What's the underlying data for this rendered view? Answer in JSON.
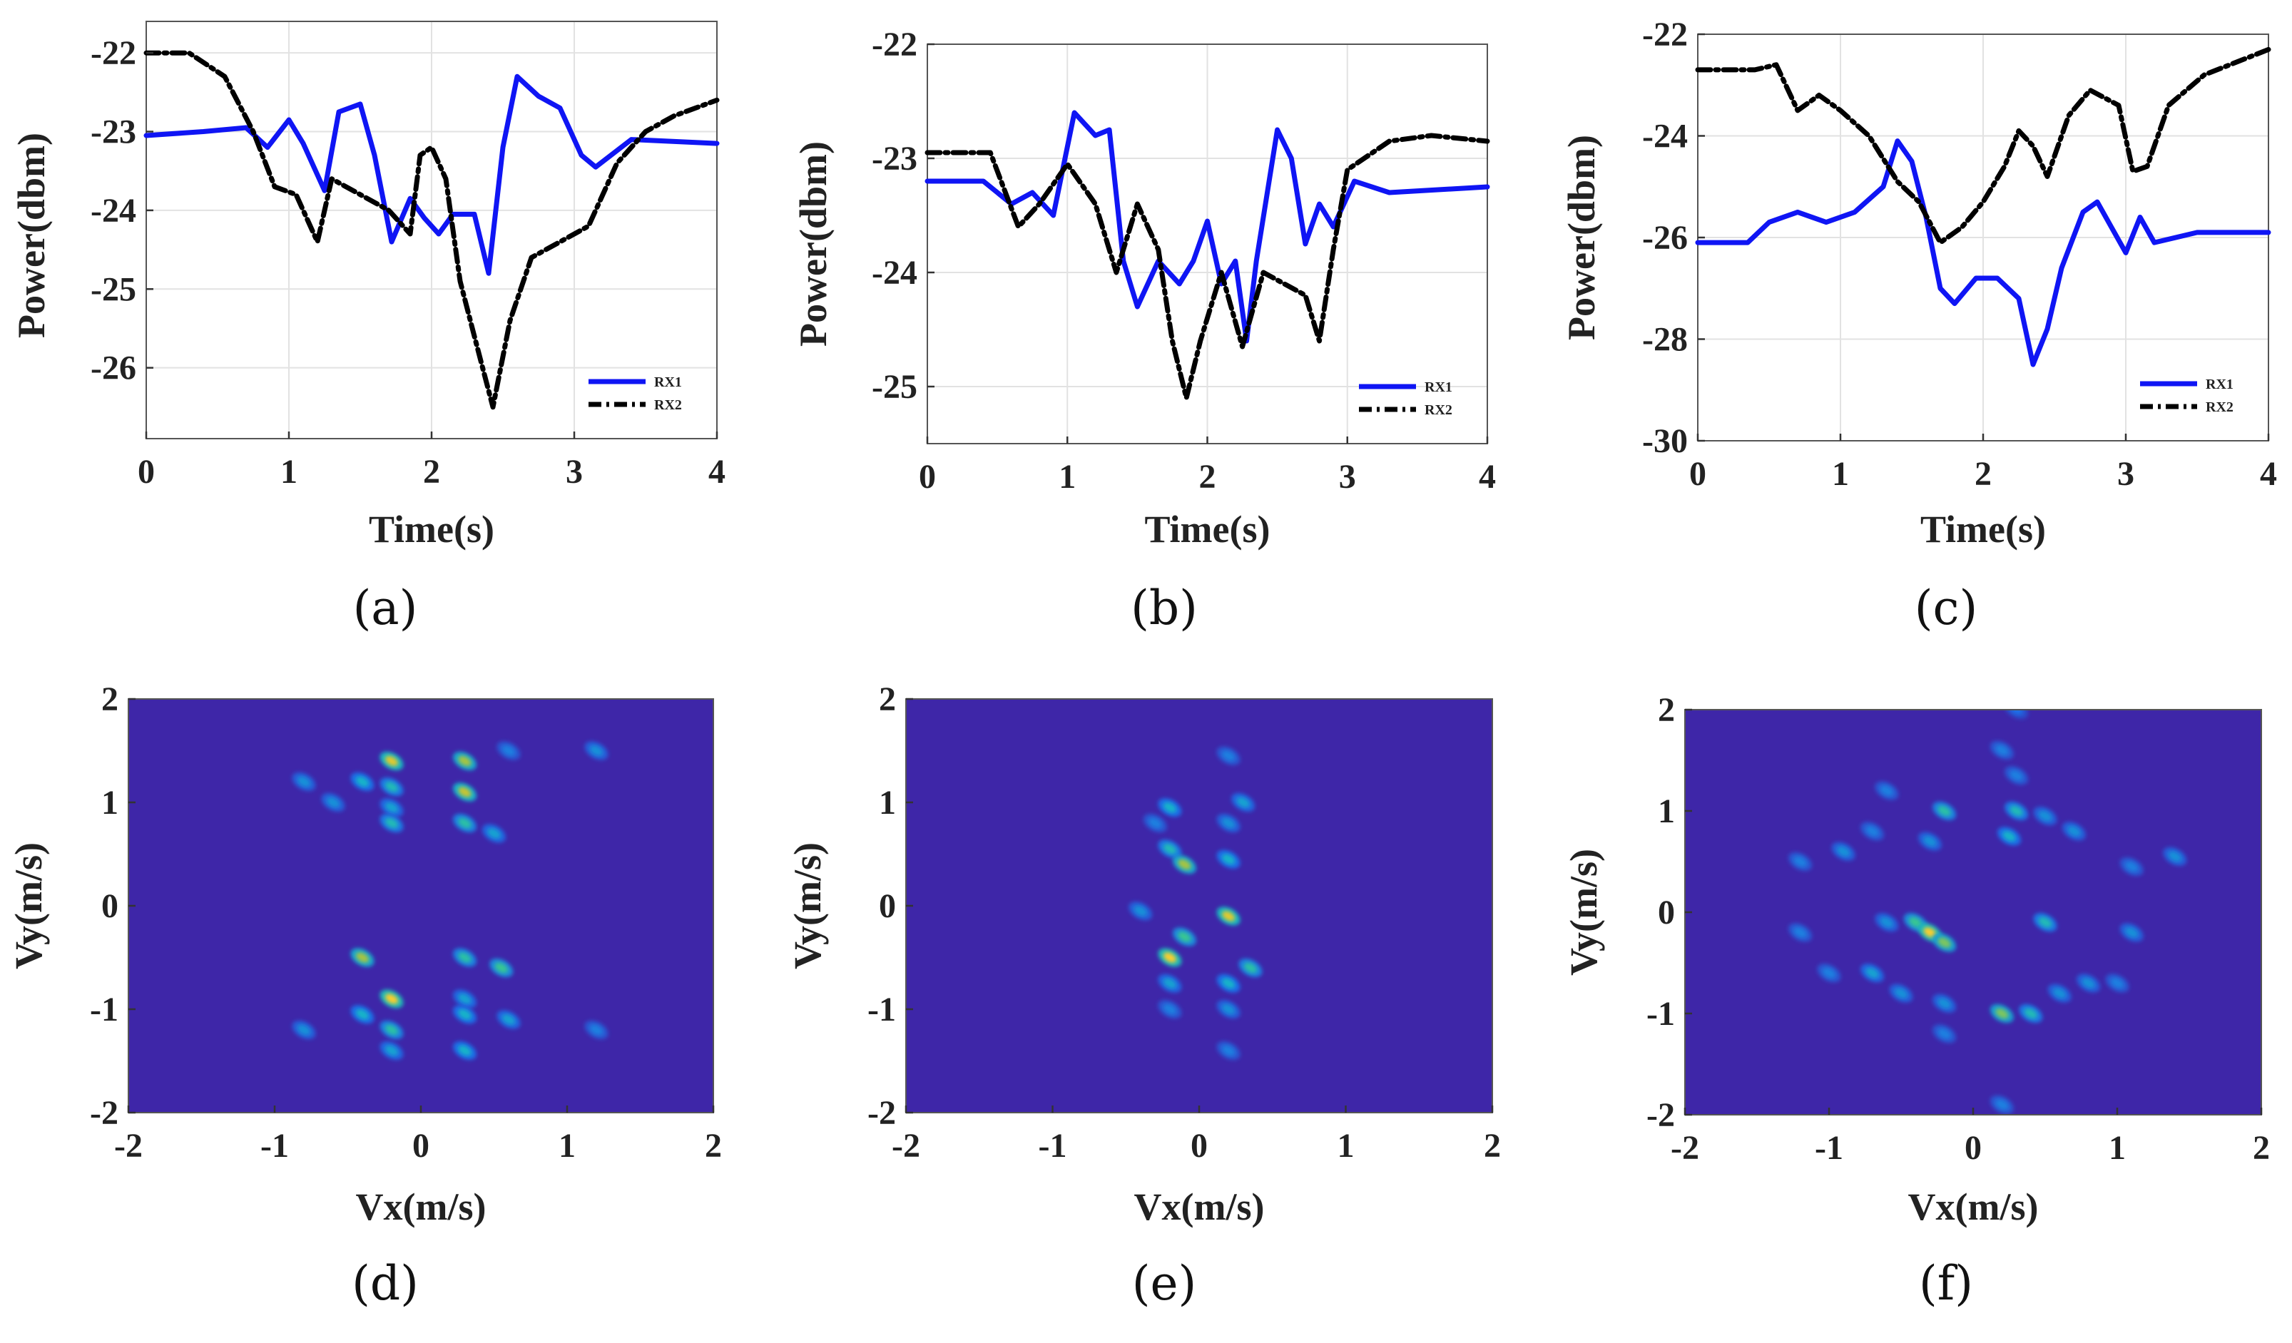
{
  "chart_data": [
    {
      "id": "a",
      "type": "line",
      "caption": "(a)",
      "xlabel": "Time(s)",
      "ylabel": "Power(dbm)",
      "xlim": [
        0,
        4
      ],
      "ylim": [
        -26.9,
        -21.6
      ],
      "xticks": [
        "0",
        "1",
        "2",
        "3",
        "4"
      ],
      "yticks": [
        "-22",
        "-23",
        "-24",
        "-25",
        "-26"
      ],
      "legend": [
        "RX1",
        "RX2"
      ],
      "series": [
        {
          "name": "RX1",
          "color": "#0f15f4",
          "dash": "solid",
          "points": [
            [
              0,
              -23.05
            ],
            [
              0.4,
              -23.0
            ],
            [
              0.7,
              -22.95
            ],
            [
              0.85,
              -23.2
            ],
            [
              1.0,
              -22.85
            ],
            [
              1.1,
              -23.15
            ],
            [
              1.25,
              -23.75
            ],
            [
              1.35,
              -22.75
            ],
            [
              1.5,
              -22.65
            ],
            [
              1.6,
              -23.3
            ],
            [
              1.72,
              -24.4
            ],
            [
              1.85,
              -23.85
            ],
            [
              1.95,
              -24.1
            ],
            [
              2.05,
              -24.3
            ],
            [
              2.15,
              -24.05
            ],
            [
              2.3,
              -24.05
            ],
            [
              2.4,
              -24.8
            ],
            [
              2.5,
              -23.2
            ],
            [
              2.6,
              -22.3
            ],
            [
              2.75,
              -22.55
            ],
            [
              2.9,
              -22.7
            ],
            [
              3.05,
              -23.3
            ],
            [
              3.15,
              -23.45
            ],
            [
              3.4,
              -23.1
            ],
            [
              4.0,
              -23.15
            ]
          ]
        },
        {
          "name": "RX2",
          "color": "#000000",
          "dash": "18,7,4,7",
          "points": [
            [
              0,
              -22.0
            ],
            [
              0.3,
              -22.0
            ],
            [
              0.55,
              -22.3
            ],
            [
              0.75,
              -23.0
            ],
            [
              0.9,
              -23.7
            ],
            [
              1.05,
              -23.8
            ],
            [
              1.2,
              -24.4
            ],
            [
              1.3,
              -23.6
            ],
            [
              1.5,
              -23.8
            ],
            [
              1.7,
              -24.0
            ],
            [
              1.85,
              -24.3
            ],
            [
              1.92,
              -23.3
            ],
            [
              2.0,
              -23.2
            ],
            [
              2.1,
              -23.6
            ],
            [
              2.2,
              -24.9
            ],
            [
              2.3,
              -25.6
            ],
            [
              2.43,
              -26.5
            ],
            [
              2.55,
              -25.4
            ],
            [
              2.7,
              -24.6
            ],
            [
              2.9,
              -24.4
            ],
            [
              3.1,
              -24.2
            ],
            [
              3.3,
              -23.4
            ],
            [
              3.5,
              -23.0
            ],
            [
              3.7,
              -22.8
            ],
            [
              4.0,
              -22.6
            ]
          ]
        }
      ]
    },
    {
      "id": "b",
      "type": "line",
      "caption": "(b)",
      "xlabel": "Time(s)",
      "ylabel": "Power(dbm)",
      "xlim": [
        0,
        4
      ],
      "ylim": [
        -25.5,
        -22.0
      ],
      "xticks": [
        "0",
        "1",
        "2",
        "3",
        "4"
      ],
      "yticks": [
        "-22",
        "-23",
        "-24",
        "-25"
      ],
      "legend": [
        "RX1",
        "RX2"
      ],
      "series": [
        {
          "name": "RX1",
          "color": "#0f15f4",
          "dash": "solid",
          "points": [
            [
              0,
              -23.2
            ],
            [
              0.4,
              -23.2
            ],
            [
              0.6,
              -23.4
            ],
            [
              0.75,
              -23.3
            ],
            [
              0.9,
              -23.5
            ],
            [
              1.05,
              -22.6
            ],
            [
              1.2,
              -22.8
            ],
            [
              1.3,
              -22.75
            ],
            [
              1.4,
              -23.9
            ],
            [
              1.5,
              -24.3
            ],
            [
              1.65,
              -23.9
            ],
            [
              1.8,
              -24.1
            ],
            [
              1.9,
              -23.9
            ],
            [
              2.0,
              -23.55
            ],
            [
              2.1,
              -24.1
            ],
            [
              2.2,
              -23.9
            ],
            [
              2.28,
              -24.6
            ],
            [
              2.35,
              -23.9
            ],
            [
              2.5,
              -22.75
            ],
            [
              2.6,
              -23.0
            ],
            [
              2.7,
              -23.75
            ],
            [
              2.8,
              -23.4
            ],
            [
              2.9,
              -23.6
            ],
            [
              3.05,
              -23.2
            ],
            [
              3.3,
              -23.3
            ],
            [
              4.0,
              -23.25
            ]
          ]
        },
        {
          "name": "RX2",
          "color": "#000000",
          "dash": "18,7,4,7",
          "points": [
            [
              0,
              -22.95
            ],
            [
              0.45,
              -22.95
            ],
            [
              0.65,
              -23.6
            ],
            [
              0.8,
              -23.4
            ],
            [
              1.0,
              -23.05
            ],
            [
              1.2,
              -23.4
            ],
            [
              1.35,
              -24.0
            ],
            [
              1.5,
              -23.4
            ],
            [
              1.65,
              -23.8
            ],
            [
              1.75,
              -24.6
            ],
            [
              1.85,
              -25.1
            ],
            [
              1.95,
              -24.6
            ],
            [
              2.1,
              -24.0
            ],
            [
              2.25,
              -24.65
            ],
            [
              2.4,
              -24.0
            ],
            [
              2.55,
              -24.1
            ],
            [
              2.7,
              -24.2
            ],
            [
              2.8,
              -24.6
            ],
            [
              2.9,
              -23.8
            ],
            [
              3.0,
              -23.1
            ],
            [
              3.3,
              -22.85
            ],
            [
              3.6,
              -22.8
            ],
            [
              4.0,
              -22.85
            ]
          ]
        }
      ]
    },
    {
      "id": "c",
      "type": "line",
      "caption": "(c)",
      "xlabel": "Time(s)",
      "ylabel": "Power(dbm)",
      "xlim": [
        0,
        4
      ],
      "ylim": [
        -30,
        -22
      ],
      "xticks": [
        "0",
        "1",
        "2",
        "3",
        "4"
      ],
      "yticks": [
        "-22",
        "-24",
        "-26",
        "-28",
        "-30"
      ],
      "legend": [
        "RX1",
        "RX2"
      ],
      "series": [
        {
          "name": "RX1",
          "color": "#0f15f4",
          "dash": "solid",
          "points": [
            [
              0,
              -26.1
            ],
            [
              0.35,
              -26.1
            ],
            [
              0.5,
              -25.7
            ],
            [
              0.7,
              -25.5
            ],
            [
              0.9,
              -25.7
            ],
            [
              1.1,
              -25.5
            ],
            [
              1.3,
              -25.0
            ],
            [
              1.4,
              -24.1
            ],
            [
              1.5,
              -24.5
            ],
            [
              1.6,
              -25.6
            ],
            [
              1.7,
              -27.0
            ],
            [
              1.8,
              -27.3
            ],
            [
              1.95,
              -26.8
            ],
            [
              2.1,
              -26.8
            ],
            [
              2.25,
              -27.2
            ],
            [
              2.35,
              -28.5
            ],
            [
              2.45,
              -27.8
            ],
            [
              2.55,
              -26.6
            ],
            [
              2.7,
              -25.5
            ],
            [
              2.8,
              -25.3
            ],
            [
              2.9,
              -25.8
            ],
            [
              3.0,
              -26.3
            ],
            [
              3.1,
              -25.6
            ],
            [
              3.2,
              -26.1
            ],
            [
              3.5,
              -25.9
            ],
            [
              4.0,
              -25.9
            ]
          ]
        },
        {
          "name": "RX2",
          "color": "#000000",
          "dash": "18,7,4,7",
          "points": [
            [
              0,
              -22.7
            ],
            [
              0.4,
              -22.7
            ],
            [
              0.55,
              -22.6
            ],
            [
              0.7,
              -23.5
            ],
            [
              0.85,
              -23.2
            ],
            [
              1.0,
              -23.5
            ],
            [
              1.2,
              -24.0
            ],
            [
              1.4,
              -24.9
            ],
            [
              1.55,
              -25.3
            ],
            [
              1.7,
              -26.1
            ],
            [
              1.85,
              -25.8
            ],
            [
              2.0,
              -25.3
            ],
            [
              2.15,
              -24.6
            ],
            [
              2.25,
              -23.9
            ],
            [
              2.35,
              -24.2
            ],
            [
              2.45,
              -24.8
            ],
            [
              2.6,
              -23.6
            ],
            [
              2.75,
              -23.1
            ],
            [
              2.95,
              -23.4
            ],
            [
              3.05,
              -24.7
            ],
            [
              3.15,
              -24.6
            ],
            [
              3.3,
              -23.4
            ],
            [
              3.55,
              -22.8
            ],
            [
              4.0,
              -22.3
            ]
          ]
        }
      ]
    },
    {
      "id": "d",
      "type": "heatmap",
      "caption": "(d)",
      "xlabel": "Vx(m/s)",
      "ylabel": "Vy(m/s)",
      "xlim": [
        -2,
        2
      ],
      "ylim": [
        -2,
        2
      ],
      "xticks": [
        "-2",
        "-1",
        "0",
        "1",
        "2"
      ],
      "yticks": [
        "2",
        "1",
        "0",
        "-1",
        "-2"
      ],
      "peaks": [
        [
          -0.2,
          1.4,
          0.85
        ],
        [
          0.3,
          1.4,
          0.75
        ],
        [
          -0.2,
          1.15,
          0.5
        ],
        [
          0.3,
          1.1,
          0.8
        ],
        [
          -0.4,
          1.2,
          0.45
        ],
        [
          -0.8,
          1.2,
          0.35
        ],
        [
          -0.6,
          1.0,
          0.35
        ],
        [
          -0.2,
          0.95,
          0.4
        ],
        [
          -0.2,
          0.8,
          0.5
        ],
        [
          0.3,
          0.8,
          0.55
        ],
        [
          0.5,
          0.7,
          0.4
        ],
        [
          0.6,
          1.5,
          0.3
        ],
        [
          1.2,
          1.5,
          0.35
        ],
        [
          -0.4,
          -0.5,
          0.75
        ],
        [
          0.3,
          -0.5,
          0.55
        ],
        [
          0.55,
          -0.6,
          0.6
        ],
        [
          -0.2,
          -0.9,
          0.9
        ],
        [
          0.3,
          -0.9,
          0.4
        ],
        [
          -0.4,
          -1.05,
          0.45
        ],
        [
          -0.2,
          -1.2,
          0.55
        ],
        [
          0.3,
          -1.05,
          0.45
        ],
        [
          0.6,
          -1.1,
          0.4
        ],
        [
          -0.8,
          -1.2,
          0.35
        ],
        [
          0.3,
          -1.4,
          0.45
        ],
        [
          -0.2,
          -1.4,
          0.4
        ],
        [
          1.2,
          -1.2,
          0.3
        ]
      ]
    },
    {
      "id": "e",
      "type": "heatmap",
      "caption": "(e)",
      "xlabel": "Vx(m/s)",
      "ylabel": "Vy(m/s)",
      "xlim": [
        -2,
        2
      ],
      "ylim": [
        -2,
        2
      ],
      "xticks": [
        "-2",
        "-1",
        "0",
        "1",
        "2"
      ],
      "yticks": [
        "2",
        "1",
        "0",
        "-1",
        "-2"
      ],
      "peaks": [
        [
          0.2,
          1.45,
          0.3
        ],
        [
          -0.2,
          0.95,
          0.45
        ],
        [
          0.3,
          1.0,
          0.4
        ],
        [
          0.2,
          0.8,
          0.35
        ],
        [
          -0.3,
          0.8,
          0.3
        ],
        [
          -0.2,
          0.55,
          0.5
        ],
        [
          -0.1,
          0.4,
          0.75
        ],
        [
          0.2,
          0.45,
          0.45
        ],
        [
          -0.4,
          -0.05,
          0.35
        ],
        [
          0.2,
          -0.1,
          0.85
        ],
        [
          -0.1,
          -0.3,
          0.6
        ],
        [
          -0.2,
          -0.5,
          0.9
        ],
        [
          0.35,
          -0.6,
          0.55
        ],
        [
          0.2,
          -0.75,
          0.45
        ],
        [
          -0.2,
          -0.75,
          0.4
        ],
        [
          -0.2,
          -1.0,
          0.3
        ],
        [
          0.2,
          -1.0,
          0.35
        ],
        [
          0.2,
          -1.4,
          0.3
        ]
      ]
    },
    {
      "id": "f",
      "type": "heatmap",
      "caption": "(f)",
      "xlabel": "Vx(m/s)",
      "ylabel": "Vy(m/s)",
      "xlim": [
        -2,
        2
      ],
      "ylim": [
        -2,
        2
      ],
      "xticks": [
        "-2",
        "-1",
        "0",
        "1",
        "2"
      ],
      "yticks": [
        "2",
        "1",
        "0",
        "-1",
        "-2"
      ],
      "peaks": [
        [
          -0.2,
          1.0,
          0.55
        ],
        [
          0.3,
          1.0,
          0.5
        ],
        [
          0.25,
          0.75,
          0.45
        ],
        [
          -0.3,
          0.7,
          0.35
        ],
        [
          0.5,
          0.95,
          0.35
        ],
        [
          0.7,
          0.8,
          0.35
        ],
        [
          0.3,
          1.35,
          0.3
        ],
        [
          -0.6,
          1.2,
          0.3
        ],
        [
          -0.9,
          0.6,
          0.35
        ],
        [
          -1.2,
          0.5,
          0.3
        ],
        [
          -0.7,
          0.8,
          0.3
        ],
        [
          1.4,
          0.55,
          0.35
        ],
        [
          1.1,
          0.45,
          0.3
        ],
        [
          0.2,
          1.6,
          0.3
        ],
        [
          -0.6,
          -0.1,
          0.35
        ],
        [
          -0.4,
          -0.1,
          0.6
        ],
        [
          -0.3,
          -0.2,
          0.9
        ],
        [
          -0.2,
          -0.3,
          0.7
        ],
        [
          0.5,
          -0.1,
          0.5
        ],
        [
          1.1,
          -0.2,
          0.35
        ],
        [
          -1.2,
          -0.2,
          0.3
        ],
        [
          -0.7,
          -0.6,
          0.4
        ],
        [
          -0.5,
          -0.8,
          0.35
        ],
        [
          0.2,
          -1.0,
          0.7
        ],
        [
          0.4,
          -1.0,
          0.5
        ],
        [
          0.6,
          -0.8,
          0.35
        ],
        [
          0.8,
          -0.7,
          0.35
        ],
        [
          -0.2,
          -0.9,
          0.35
        ],
        [
          -0.2,
          -1.2,
          0.3
        ],
        [
          0.2,
          -1.9,
          0.3
        ],
        [
          0.3,
          2.0,
          0.25
        ],
        [
          1.0,
          -0.7,
          0.3
        ],
        [
          -1.0,
          -0.6,
          0.3
        ]
      ]
    }
  ]
}
